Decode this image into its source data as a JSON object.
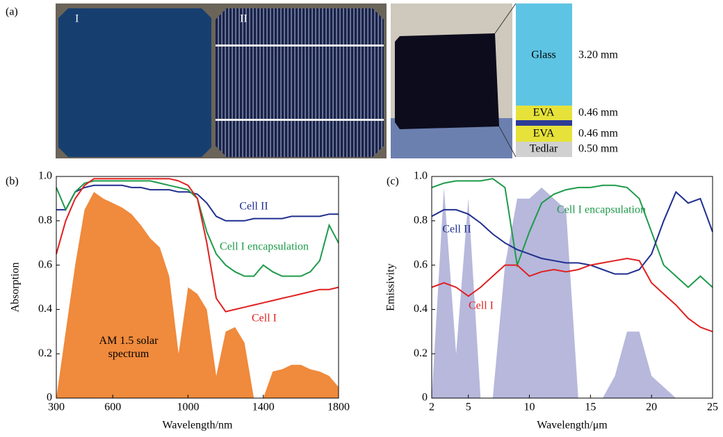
{
  "panel_a": {
    "label": "(a)",
    "cell_labels": [
      "I",
      "II"
    ],
    "layers": [
      {
        "name": "Glass",
        "thickness": "3.20 mm"
      },
      {
        "name": "EVA",
        "thickness": "0.46 mm"
      },
      {
        "name": "EVA",
        "thickness": "0.46 mm"
      },
      {
        "name": "Tedlar",
        "thickness": "0.50 mm"
      }
    ]
  },
  "chart_data": [
    {
      "type": "line",
      "label": "(b)",
      "xlabel": "Wavelength/nm",
      "ylabel": "Absorption",
      "xlim": [
        300,
        1800
      ],
      "xticks": [
        300,
        600,
        1000,
        1400,
        1800
      ],
      "ylim": [
        0,
        1
      ],
      "yticks": [
        0,
        0.2,
        0.4,
        0.6,
        0.8,
        {
          "value": 1,
          "label": "1.0"
        }
      ],
      "x": [
        300,
        350,
        400,
        450,
        500,
        550,
        600,
        650,
        700,
        750,
        800,
        850,
        900,
        950,
        1000,
        1050,
        1100,
        1150,
        1200,
        1250,
        1300,
        1350,
        1400,
        1450,
        1500,
        1550,
        1600,
        1650,
        1700,
        1750,
        1800
      ],
      "series": [
        {
          "name": "AM 1.5 solar spectrum",
          "color": "#f08a3c",
          "area": true,
          "values": [
            0,
            0.3,
            0.6,
            0.85,
            0.93,
            0.9,
            0.88,
            0.86,
            0.83,
            0.78,
            0.72,
            0.68,
            0.55,
            0.2,
            0.5,
            0.47,
            0.4,
            0.1,
            0.3,
            0.32,
            0.25,
            0,
            0,
            0.12,
            0.13,
            0.15,
            0.15,
            0.13,
            0.12,
            0.1,
            0.05
          ]
        },
        {
          "name": "Cell II",
          "color": "#1f2f8f",
          "values": [
            0.85,
            0.85,
            0.93,
            0.95,
            0.96,
            0.96,
            0.96,
            0.96,
            0.95,
            0.95,
            0.94,
            0.94,
            0.94,
            0.93,
            0.93,
            0.92,
            0.88,
            0.82,
            0.8,
            0.8,
            0.8,
            0.81,
            0.81,
            0.81,
            0.81,
            0.82,
            0.82,
            0.82,
            0.82,
            0.83,
            0.83
          ]
        },
        {
          "name": "Cell I encapsulation",
          "color": "#1e9a4a",
          "values": [
            0.95,
            0.85,
            0.93,
            0.97,
            0.98,
            0.98,
            0.98,
            0.98,
            0.98,
            0.98,
            0.98,
            0.97,
            0.96,
            0.95,
            0.94,
            0.9,
            0.75,
            0.65,
            0.6,
            0.57,
            0.55,
            0.55,
            0.6,
            0.57,
            0.55,
            0.55,
            0.55,
            0.57,
            0.62,
            0.78,
            0.7
          ]
        },
        {
          "name": "Cell I",
          "color": "#e02020",
          "values": [
            0.65,
            0.8,
            0.9,
            0.96,
            0.99,
            0.99,
            0.99,
            0.99,
            0.99,
            0.99,
            0.99,
            0.99,
            0.99,
            0.98,
            0.96,
            0.9,
            0.7,
            0.45,
            0.39,
            0.4,
            0.41,
            0.42,
            0.43,
            0.44,
            0.45,
            0.46,
            0.47,
            0.48,
            0.49,
            0.49,
            0.5
          ]
        }
      ]
    },
    {
      "type": "line",
      "label": "(c)",
      "xlabel": "Wavelength/μm",
      "ylabel": "Emissivity",
      "xlim": [
        2,
        25
      ],
      "xticks": [
        2,
        5,
        10,
        15,
        20,
        25
      ],
      "ylim": [
        0,
        1
      ],
      "yticks": [
        0,
        0.2,
        0.4,
        0.6,
        0.8,
        {
          "value": 1,
          "label": "1.0"
        }
      ],
      "x": [
        2,
        3,
        4,
        5,
        6,
        7,
        8,
        9,
        10,
        11,
        12,
        13,
        14,
        15,
        16,
        17,
        18,
        19,
        20,
        21,
        22,
        23,
        24,
        25
      ],
      "series": [
        {
          "color": "#b7b8dc",
          "area": true,
          "values": [
            0,
            0.95,
            0.2,
            0.9,
            0,
            0,
            0.6,
            0.9,
            0.9,
            0.95,
            0.9,
            0.85,
            0,
            0,
            0,
            0.1,
            0.3,
            0.3,
            0.1,
            0.05,
            0,
            0,
            0,
            0
          ]
        },
        {
          "name": "Cell I encapsulation",
          "color": "#1e9a4a",
          "values": [
            0.95,
            0.97,
            0.98,
            0.98,
            0.98,
            0.99,
            0.95,
            0.6,
            0.75,
            0.88,
            0.92,
            0.94,
            0.95,
            0.95,
            0.96,
            0.96,
            0.95,
            0.9,
            0.75,
            0.6,
            0.55,
            0.5,
            0.55,
            0.5
          ]
        },
        {
          "name": "Cell II",
          "color": "#1f2f8f",
          "values": [
            0.82,
            0.85,
            0.85,
            0.83,
            0.79,
            0.74,
            0.7,
            0.67,
            0.65,
            0.63,
            0.62,
            0.61,
            0.61,
            0.6,
            0.58,
            0.56,
            0.56,
            0.58,
            0.65,
            0.8,
            0.93,
            0.88,
            0.9,
            0.75
          ]
        },
        {
          "name": "Cell I",
          "color": "#e02020",
          "values": [
            0.5,
            0.52,
            0.5,
            0.46,
            0.5,
            0.55,
            0.6,
            0.6,
            0.55,
            0.57,
            0.58,
            0.57,
            0.58,
            0.6,
            0.61,
            0.62,
            0.63,
            0.62,
            0.52,
            0.47,
            0.42,
            0.36,
            0.32,
            0.3
          ]
        }
      ]
    }
  ]
}
